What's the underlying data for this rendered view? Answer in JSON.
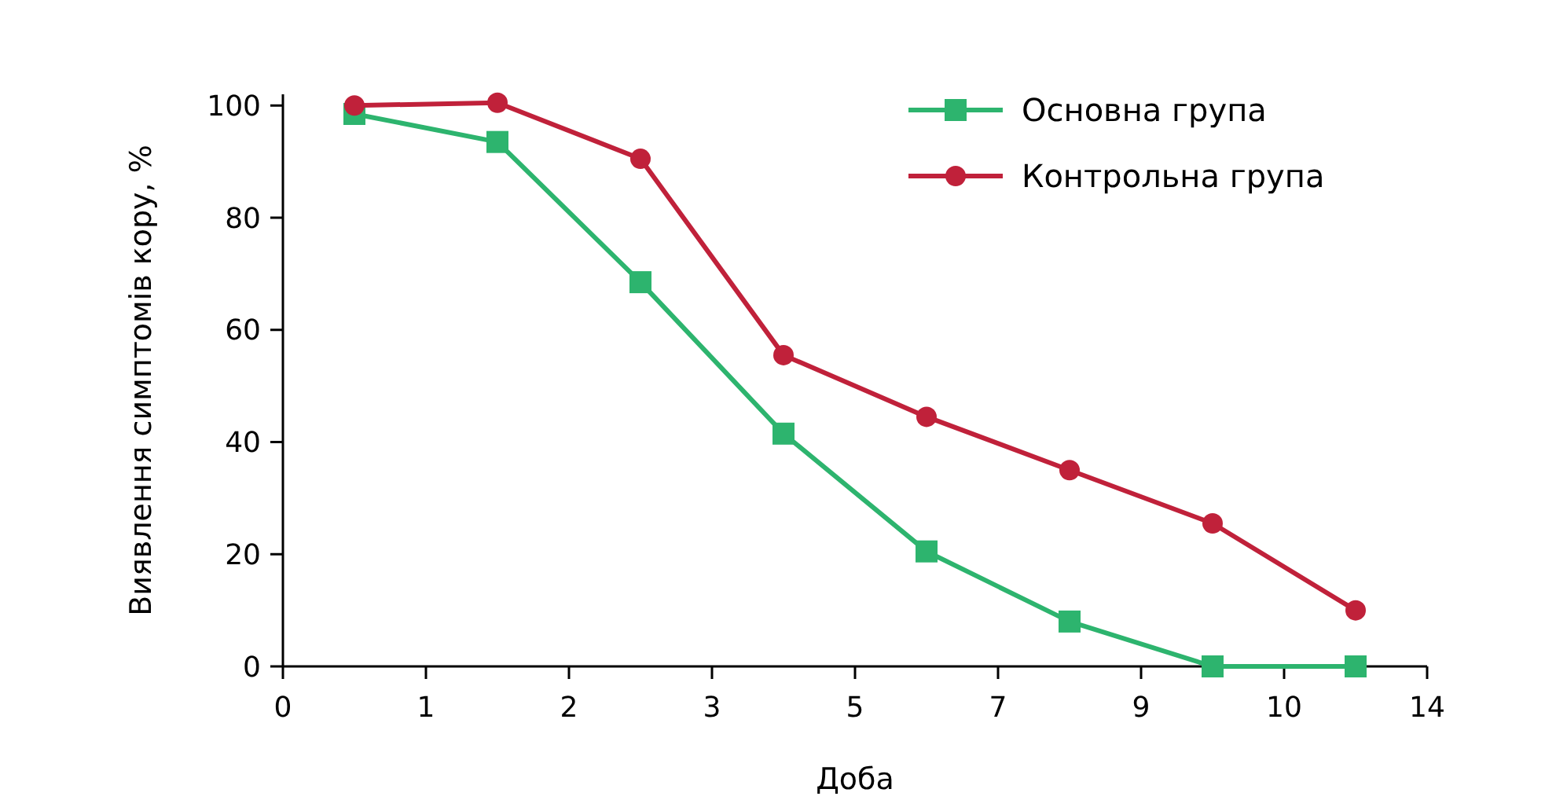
{
  "chart_data": {
    "type": "line",
    "xlabel": "Доба",
    "ylabel": "Виявлення симптомів кору, %",
    "categories": [
      "0",
      null,
      "1",
      null,
      "2",
      null,
      "3",
      null,
      "5",
      null,
      "7",
      null,
      "9",
      null,
      "10",
      null,
      "14"
    ],
    "ylim": [
      0,
      102
    ],
    "yticks": [
      0,
      20,
      40,
      60,
      80,
      100
    ],
    "grid": false,
    "legend": "top right",
    "line_style": "solid",
    "series": [
      {
        "name": "Основна група",
        "color": "#2db46e",
        "marker": "square",
        "values": [
          null,
          98.5,
          null,
          93.5,
          null,
          68.5,
          null,
          41.5,
          null,
          20.5,
          null,
          8,
          null,
          0,
          null,
          0,
          null
        ]
      },
      {
        "name": "Контрольна група",
        "color": "#c0213a",
        "marker": "circle",
        "values": [
          null,
          100,
          null,
          100.5,
          null,
          90.5,
          null,
          55.5,
          null,
          44.5,
          null,
          35,
          null,
          25.5,
          null,
          10,
          null
        ]
      }
    ]
  }
}
